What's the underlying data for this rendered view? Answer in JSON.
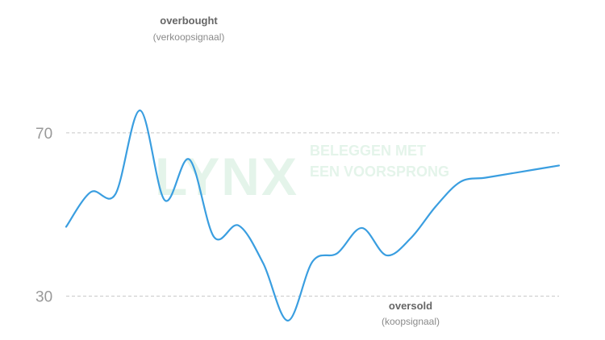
{
  "chart_data": {
    "type": "line",
    "title": "",
    "xlabel": "",
    "ylabel": "",
    "ylim": [
      23.6,
      98.6
    ],
    "yticks": [
      70,
      30
    ],
    "ytick_labels": [
      "70",
      "30"
    ],
    "grid": "dashed horizontal lines at 70 and 30",
    "series": [
      {
        "x": [
          0,
          5,
          10,
          15,
          20,
          25,
          30,
          35,
          40,
          45,
          50,
          55,
          60,
          65,
          70,
          75,
          80,
          85,
          90,
          95,
          100
        ],
        "values": [
          47,
          55.5,
          55,
          75.5,
          53.5,
          63.5,
          44.5,
          47.3,
          38,
          24,
          38.5,
          40.5,
          46.7,
          40,
          44.3,
          52,
          58,
          59,
          60,
          61,
          62
        ],
        "color": "#3a9ee0"
      }
    ],
    "markers": [
      {
        "label": "overbought",
        "sublabel": "(verkoopsignaal)",
        "fill": "#e0134f",
        "threshold": 70,
        "side": "above",
        "x_from": 24.5,
        "x_to": 30.5
      },
      {
        "label": "oversold",
        "sublabel": "(koopsignaal)",
        "fill": "#00a651",
        "threshold": 30,
        "side": "below",
        "x_from": 65.5,
        "x_to": 71.5
      }
    ],
    "watermark": {
      "logo": "LYNX",
      "tagline_1": "BELEGGEN MET",
      "tagline_2": "EEN VOORSPRONG",
      "color": "#e4f4ea"
    }
  }
}
